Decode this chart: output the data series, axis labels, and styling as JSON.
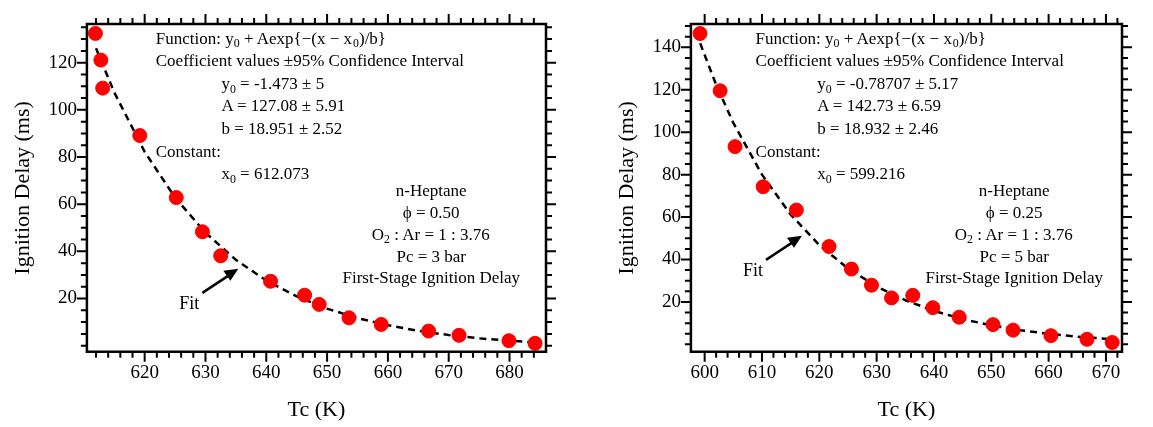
{
  "chart_data": [
    {
      "type": "scatter",
      "xlabel": "Tc (K)",
      "ylabel": "Ignition Delay (ms)",
      "xlim": [
        610.5,
        686
      ],
      "ylim": [
        -2.6,
        136.4
      ],
      "grid": false,
      "legend": false,
      "marker": "circle",
      "xticks": [
        {
          "value": 612,
          "label": null
        },
        {
          "value": 614,
          "label": null
        },
        {
          "value": 616,
          "label": null
        },
        {
          "value": 618,
          "label": null
        },
        620,
        {
          "value": 622,
          "label": null
        },
        {
          "value": 624,
          "label": null
        },
        {
          "value": 626,
          "label": null
        },
        {
          "value": 628,
          "label": null
        },
        630,
        {
          "value": 632,
          "label": null
        },
        {
          "value": 634,
          "label": null
        },
        {
          "value": 636,
          "label": null
        },
        {
          "value": 638,
          "label": null
        },
        640,
        {
          "value": 642,
          "label": null
        },
        {
          "value": 644,
          "label": null
        },
        {
          "value": 646,
          "label": null
        },
        {
          "value": 648,
          "label": null
        },
        650,
        {
          "value": 652,
          "label": null
        },
        {
          "value": 654,
          "label": null
        },
        {
          "value": 656,
          "label": null
        },
        {
          "value": 658,
          "label": null
        },
        660,
        {
          "value": 662,
          "label": null
        },
        {
          "value": 664,
          "label": null
        },
        {
          "value": 666,
          "label": null
        },
        {
          "value": 668,
          "label": null
        },
        670,
        {
          "value": 672,
          "label": null
        },
        {
          "value": 674,
          "label": null
        },
        {
          "value": 676,
          "label": null
        },
        {
          "value": 678,
          "label": null
        },
        680,
        {
          "value": 682,
          "label": null
        },
        {
          "value": 684,
          "label": null
        }
      ],
      "yticks": [
        {
          "value": 0,
          "label": null
        },
        {
          "value": 5,
          "label": null
        },
        {
          "value": 10,
          "label": null
        },
        {
          "value": 15,
          "label": null
        },
        20,
        {
          "value": 25,
          "label": null
        },
        {
          "value": 30,
          "label": null
        },
        {
          "value": 35,
          "label": null
        },
        40,
        {
          "value": 45,
          "label": null
        },
        {
          "value": 50,
          "label": null
        },
        {
          "value": 55,
          "label": null
        },
        60,
        {
          "value": 65,
          "label": null
        },
        {
          "value": 70,
          "label": null
        },
        {
          "value": 75,
          "label": null
        },
        80,
        {
          "value": 85,
          "label": null
        },
        {
          "value": 90,
          "label": null
        },
        {
          "value": 95,
          "label": null
        },
        100,
        {
          "value": 105,
          "label": null
        },
        {
          "value": 110,
          "label": null
        },
        {
          "value": 115,
          "label": null
        },
        120,
        {
          "value": 125,
          "label": null
        },
        {
          "value": 130,
          "label": null
        },
        {
          "value": 135,
          "label": null
        }
      ],
      "series": [
        {
          "type": "line",
          "color": "#000000",
          "line_style": "dashed",
          "marker": "none",
          "x": [
            612,
            615,
            620,
            625,
            630,
            635,
            640,
            645,
            650,
            655,
            660,
            665,
            670,
            675,
            680,
            685
          ],
          "values": [
            126.1,
            107.4,
            82.2,
            62.8,
            47.9,
            36.4,
            27.6,
            20.9,
            15.7,
            11.7,
            8.7,
            6.3,
            4.5,
            3.1,
            2.1,
            1.2
          ]
        },
        {
          "type": "scatter",
          "color": "#ff0000",
          "x": [
            611.9,
            612.8,
            613.1,
            619.2,
            625.2,
            629.5,
            632.5,
            640.7,
            646.3,
            648.7,
            653.6,
            658.9,
            666.7,
            671.7,
            679.9,
            684.2
          ],
          "values": [
            132.4,
            121.1,
            109.2,
            89.1,
            62.8,
            48.3,
            38.1,
            27.3,
            21.4,
            17.5,
            11.8,
            9.0,
            6.2,
            4.4,
            2.1,
            1.0
          ]
        }
      ],
      "annotations": [
        "Function: y$_{0}$ + Aexp{−(x − x$_{0}$)/b}",
        "Coefficient values ±95% Confidence Interval",
        "y$_{0}$ = -1.473 ± 5",
        "A = 127.08 ± 5.91",
        "b = 18.951 ± 2.52",
        "Constant:",
        "x$_{0}$ = 612.073",
        "n-Heptane",
        "ϕ = 0.50",
        "O$_{2}$ : Ar = 1 : 3.76",
        "Pc = 3 bar",
        "First-Stage Ignition Delay",
        {
          "text": "Fit",
          "x": 635.9,
          "y": 34.7
        }
      ]
    },
    {
      "type": "scatter",
      "xlabel": "Tc (K)",
      "ylabel": "Ignition Delay (ms)",
      "xlim": [
        597.6,
        672.8
      ],
      "ylim": [
        -3.5,
        151
      ],
      "grid": false,
      "legend": false,
      "marker": "circle",
      "xticks": [
        600,
        {
          "value": 602,
          "label": null
        },
        {
          "value": 604,
          "label": null
        },
        {
          "value": 606,
          "label": null
        },
        {
          "value": 608,
          "label": null
        },
        610,
        {
          "value": 612,
          "label": null
        },
        {
          "value": 614,
          "label": null
        },
        {
          "value": 616,
          "label": null
        },
        {
          "value": 618,
          "label": null
        },
        620,
        {
          "value": 622,
          "label": null
        },
        {
          "value": 624,
          "label": null
        },
        {
          "value": 626,
          "label": null
        },
        {
          "value": 628,
          "label": null
        },
        630,
        {
          "value": 632,
          "label": null
        },
        {
          "value": 634,
          "label": null
        },
        {
          "value": 636,
          "label": null
        },
        {
          "value": 638,
          "label": null
        },
        640,
        {
          "value": 642,
          "label": null
        },
        {
          "value": 644,
          "label": null
        },
        {
          "value": 646,
          "label": null
        },
        {
          "value": 648,
          "label": null
        },
        650,
        {
          "value": 652,
          "label": null
        },
        {
          "value": 654,
          "label": null
        },
        {
          "value": 656,
          "label": null
        },
        {
          "value": 658,
          "label": null
        },
        660,
        {
          "value": 662,
          "label": null
        },
        {
          "value": 664,
          "label": null
        },
        {
          "value": 666,
          "label": null
        },
        {
          "value": 668,
          "label": null
        },
        670,
        {
          "value": 672,
          "label": null
        }
      ],
      "yticks": [
        {
          "value": 0,
          "label": null
        },
        {
          "value": 5,
          "label": null
        },
        {
          "value": 10,
          "label": null
        },
        {
          "value": 15,
          "label": null
        },
        20,
        {
          "value": 25,
          "label": null
        },
        {
          "value": 30,
          "label": null
        },
        {
          "value": 35,
          "label": null
        },
        40,
        {
          "value": 45,
          "label": null
        },
        {
          "value": 50,
          "label": null
        },
        {
          "value": 55,
          "label": null
        },
        60,
        {
          "value": 65,
          "label": null
        },
        {
          "value": 70,
          "label": null
        },
        {
          "value": 75,
          "label": null
        },
        80,
        {
          "value": 85,
          "label": null
        },
        {
          "value": 90,
          "label": null
        },
        {
          "value": 95,
          "label": null
        },
        100,
        {
          "value": 105,
          "label": null
        },
        {
          "value": 110,
          "label": null
        },
        {
          "value": 115,
          "label": null
        },
        120,
        {
          "value": 125,
          "label": null
        },
        {
          "value": 130,
          "label": null
        },
        {
          "value": 135,
          "label": null
        },
        140,
        {
          "value": 145,
          "label": null
        },
        {
          "value": 150,
          "label": null
        }
      ],
      "series": [
        {
          "type": "line",
          "color": "#000000",
          "line_style": "dashed",
          "marker": "none",
          "x": [
            599.216,
            602,
            605,
            610,
            615,
            620,
            625,
            630,
            635,
            640,
            645,
            650,
            655,
            660,
            665,
            672
          ],
          "values": [
            141.9,
            122.4,
            104.4,
            80.0,
            61.2,
            46.8,
            35.8,
            27.3,
            20.8,
            15.8,
            11.9,
            9.0,
            6.7,
            5.0,
            3.6,
            2.3
          ]
        },
        {
          "type": "scatter",
          "color": "#ff0000",
          "x": [
            599.2,
            602.7,
            605.3,
            610.2,
            616.0,
            621.7,
            625.6,
            629.1,
            632.6,
            636.3,
            639.8,
            644.4,
            650.3,
            653.8,
            660.4,
            666.7,
            671.1
          ],
          "values": [
            146.5,
            119.5,
            93.2,
            74.3,
            63.3,
            46.1,
            35.5,
            27.9,
            21.9,
            23.1,
            17.3,
            12.8,
            9.3,
            6.7,
            4.1,
            2.4,
            0.9
          ]
        }
      ],
      "annotations": [
        "Function: y$_{0}$ + Aexp{−(x − x$_{0}$)/b}",
        "Coefficient values ±95% Confidence Interval",
        "y$_{0}$ = -0.78707 ± 5.17",
        "A = 142.73 ± 6.59",
        "b = 18.932 ± 2.46",
        "Constant:",
        "x$_{0}$ = 599.216",
        "n-Heptane",
        "ϕ = 0.25",
        "O$_{2}$ : Ar = 1 : 3.76",
        "Pc = 5 bar",
        "First-Stage Ignition Delay",
        {
          "text": "Fit",
          "x": 617.5,
          "y": 53.5
        }
      ]
    }
  ]
}
